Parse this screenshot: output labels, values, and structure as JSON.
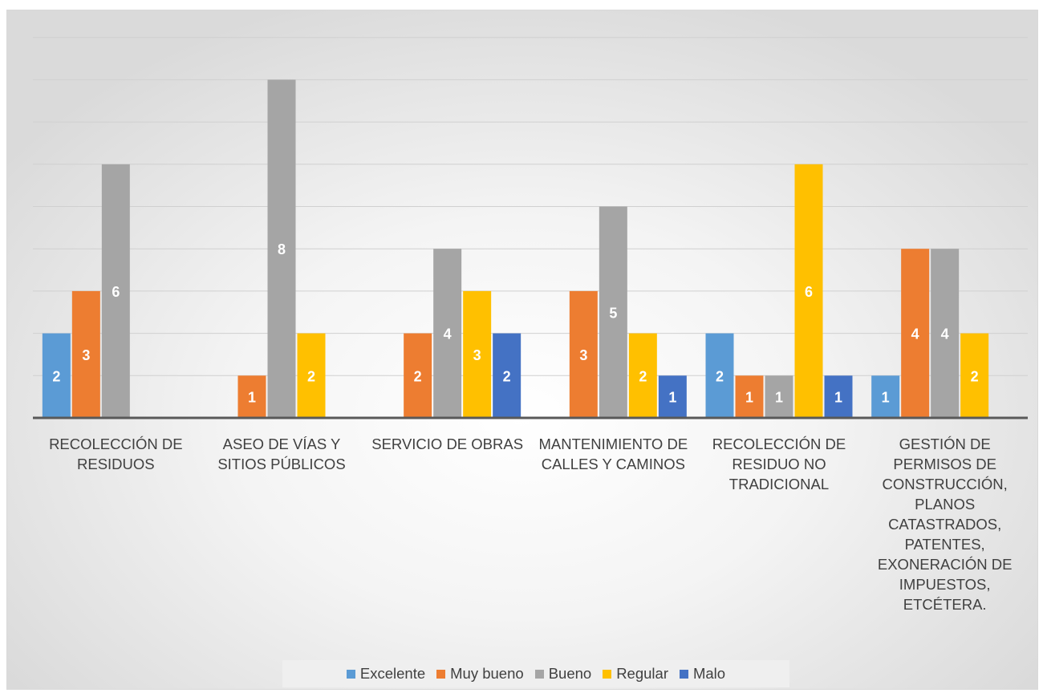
{
  "chart_data": {
    "type": "bar",
    "title": "",
    "xlabel": "",
    "ylabel": "",
    "ylim": [
      0,
      9
    ],
    "grid": true,
    "legend_position": "bottom",
    "categories": [
      "RECOLECCIÓN DE RESIDUOS",
      "ASEO DE VÍAS Y SITIOS PÚBLICOS",
      "SERVICIO DE OBRAS",
      "MANTENIMIENTO DE CALLES Y CAMINOS",
      "RECOLECCIÓN DE RESIDUO NO TRADICIONAL",
      "GESTIÓN DE PERMISOS DE CONSTRUCCIÓN, PLANOS CATASTRADOS, PATENTES, EXONERACIÓN DE IMPUESTOS, ETCÉTERA."
    ],
    "series": [
      {
        "name": "Excelente",
        "color": "#5b9bd5",
        "values": [
          2,
          0,
          0,
          0,
          2,
          1
        ]
      },
      {
        "name": "Muy bueno",
        "color": "#ed7d31",
        "values": [
          3,
          1,
          2,
          3,
          1,
          4
        ]
      },
      {
        "name": "Bueno",
        "color": "#a5a5a5",
        "values": [
          6,
          8,
          4,
          5,
          1,
          4
        ]
      },
      {
        "name": "Regular",
        "color": "#ffc000",
        "values": [
          0,
          2,
          3,
          2,
          6,
          2
        ]
      },
      {
        "name": "Malo",
        "color": "#4472c4",
        "values": [
          0,
          0,
          2,
          1,
          1,
          0
        ]
      }
    ]
  }
}
